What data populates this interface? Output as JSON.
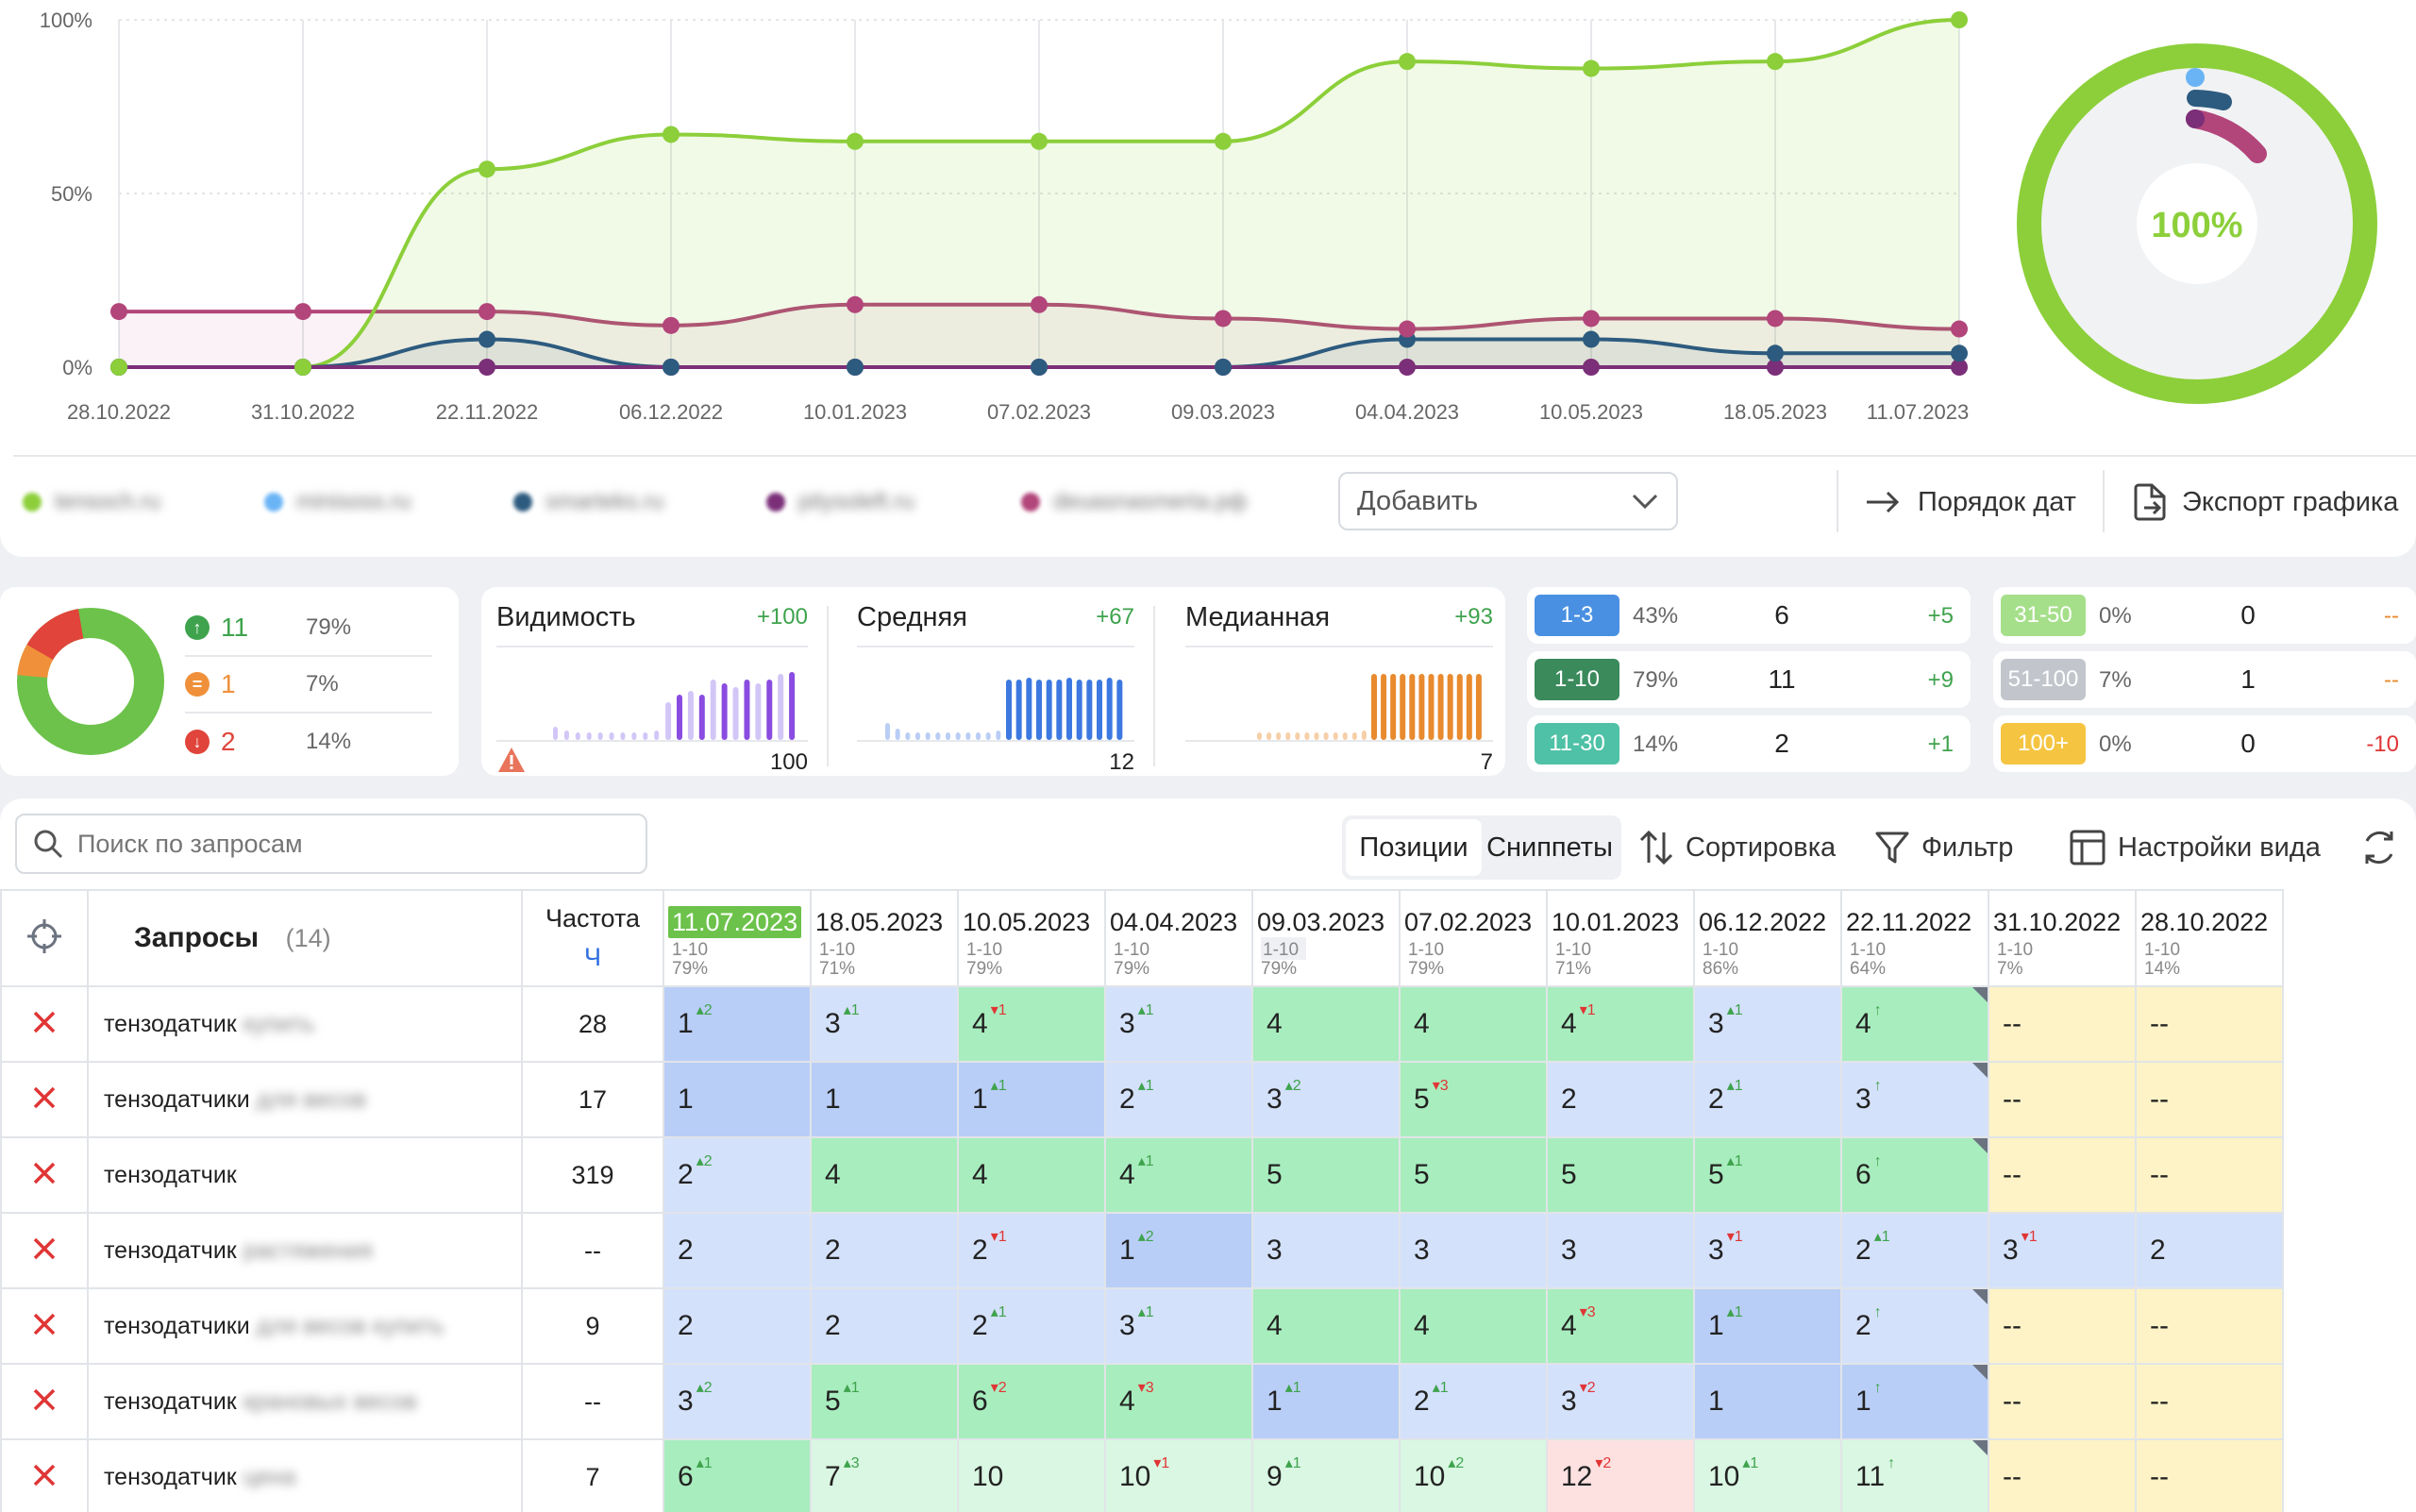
{
  "chart": {
    "y_ticks": [
      "100%",
      "50%",
      "0%"
    ],
    "x_labels": [
      "28.10.2022",
      "31.10.2022",
      "22.11.2022",
      "06.12.2022",
      "10.01.2023",
      "07.02.2023",
      "09.03.2023",
      "04.04.2023",
      "10.05.2023",
      "18.05.2023",
      "11.07.2023"
    ],
    "series_colors": [
      "#8ccf3a",
      "#b2457a",
      "#2d5b7f",
      "#7b2f78",
      "#6ab4f5"
    ],
    "green": [
      0,
      0,
      57,
      67,
      65,
      65,
      65,
      88,
      86,
      88,
      100
    ],
    "pink": [
      16,
      16,
      16,
      12,
      18,
      18,
      14,
      11,
      14,
      14,
      11
    ],
    "navy": [
      0,
      0,
      8,
      0,
      0,
      0,
      0,
      8,
      8,
      4,
      4
    ],
    "purple": [
      0,
      0,
      0,
      0,
      0,
      0,
      0,
      0,
      0,
      0,
      0
    ],
    "donut_label": "100%"
  },
  "legend": [
    {
      "label": "tensoch.ru",
      "color": "#8ccf3a"
    },
    {
      "label": "minisoss.ru",
      "color": "#6ab4f5"
    },
    {
      "label": "smarteks.ru",
      "color": "#2d5b7f"
    },
    {
      "label": "pitysoleft.ru",
      "color": "#7b2f78"
    },
    {
      "label": "deuasnasmerta.pф",
      "color": "#b2457a"
    }
  ],
  "toolbar": {
    "add_label": "Добавить",
    "date_order_label": "Порядок дат",
    "export_label": "Экспорт графика"
  },
  "summary": {
    "up_count": "11",
    "up_pct": "79%",
    "same_count": "1",
    "same_pct": "7%",
    "down_count": "2",
    "down_pct": "14%"
  },
  "metrics": [
    {
      "title": "Видимость",
      "delta": "+100",
      "value": "100"
    },
    {
      "title": "Средняя",
      "delta": "+67",
      "value": "12"
    },
    {
      "title": "Медианная",
      "delta": "+93",
      "value": "7"
    }
  ],
  "ranges": [
    {
      "label": "1-3",
      "pct": "43%",
      "count": "6",
      "delta": "+5",
      "color": "#4a90e2",
      "delta_color": "#3fa34d"
    },
    {
      "label": "1-10",
      "pct": "79%",
      "count": "11",
      "delta": "+9",
      "color": "#3a8a5c",
      "delta_color": "#3fa34d"
    },
    {
      "label": "11-30",
      "pct": "14%",
      "count": "2",
      "delta": "+1",
      "color": "#4fc1a6",
      "delta_color": "#3fa34d"
    },
    {
      "label": "31-50",
      "pct": "0%",
      "count": "0",
      "delta": "--",
      "color": "#a6df8a",
      "delta_color": "#e88a2e"
    },
    {
      "label": "51-100",
      "pct": "7%",
      "count": "1",
      "delta": "--",
      "color": "#c2c6cc",
      "delta_color": "#e88a2e"
    },
    {
      "label": "100+",
      "pct": "0%",
      "count": "0",
      "delta": "-10",
      "color": "#f5c542",
      "delta_color": "#e03535"
    }
  ],
  "search": {
    "placeholder": "Поиск по запросам"
  },
  "view_tabs": {
    "positions": "Позиции",
    "snippets": "Сниппеты"
  },
  "table_tools": {
    "sort": "Сортировка",
    "filter": "Фильтр",
    "view_settings": "Настройки вида"
  },
  "table": {
    "queries_title": "Запросы",
    "queries_count": "(14)",
    "freq_title": "Частота",
    "freq_sub": "Ч",
    "dates": [
      {
        "date": "11.07.2023",
        "range": "1-10",
        "pct": "79%"
      },
      {
        "date": "18.05.2023",
        "range": "1-10",
        "pct": "71%"
      },
      {
        "date": "10.05.2023",
        "range": "1-10",
        "pct": "79%"
      },
      {
        "date": "04.04.2023",
        "range": "1-10",
        "pct": "79%"
      },
      {
        "date": "09.03.2023",
        "range": "1-10",
        "pct": "79%"
      },
      {
        "date": "07.02.2023",
        "range": "1-10",
        "pct": "79%"
      },
      {
        "date": "10.01.2023",
        "range": "1-10",
        "pct": "71%"
      },
      {
        "date": "06.12.2022",
        "range": "1-10",
        "pct": "86%"
      },
      {
        "date": "22.11.2022",
        "range": "1-10",
        "pct": "64%"
      },
      {
        "date": "31.10.2022",
        "range": "1-10",
        "pct": "7%"
      },
      {
        "date": "28.10.2022",
        "range": "1-10",
        "pct": "14%"
      }
    ],
    "rows": [
      {
        "q": "тензодатчик",
        "q_extra": "купить",
        "freq": "28",
        "cells": [
          [
            "1",
            "+2",
            "up",
            "dblue"
          ],
          [
            "3",
            "+1",
            "up",
            "lblue"
          ],
          [
            "4",
            "-1",
            "dn",
            "green"
          ],
          [
            "3",
            "+1",
            "up",
            "lblue"
          ],
          [
            "4",
            "",
            "",
            "green"
          ],
          [
            "4",
            "",
            "",
            "green"
          ],
          [
            "4",
            "-1",
            "dn",
            "green"
          ],
          [
            "3",
            "+1",
            "up",
            "lblue"
          ],
          [
            "4",
            "↑",
            "up",
            "green"
          ],
          [
            "--",
            "",
            "",
            "yellow"
          ],
          [
            "--",
            "",
            "",
            "yellow"
          ]
        ]
      },
      {
        "q": "тензодатчики",
        "q_extra": "для весов",
        "freq": "17",
        "cells": [
          [
            "1",
            "",
            "",
            "dblue"
          ],
          [
            "1",
            "",
            "",
            "dblue"
          ],
          [
            "1",
            "+1",
            "up",
            "dblue"
          ],
          [
            "2",
            "+1",
            "up",
            "lblue"
          ],
          [
            "3",
            "+2",
            "up",
            "lblue"
          ],
          [
            "5",
            "-3",
            "dn",
            "green"
          ],
          [
            "2",
            "",
            "",
            "lblue"
          ],
          [
            "2",
            "+1",
            "up",
            "lblue"
          ],
          [
            "3",
            "↑",
            "up",
            "lblue"
          ],
          [
            "--",
            "",
            "",
            "yellow"
          ],
          [
            "--",
            "",
            "",
            "yellow"
          ]
        ]
      },
      {
        "q": "тензодатчик",
        "q_extra": "",
        "freq": "319",
        "cells": [
          [
            "2",
            "+2",
            "up",
            "lblue"
          ],
          [
            "4",
            "",
            "",
            "green"
          ],
          [
            "4",
            "",
            "",
            "green"
          ],
          [
            "4",
            "+1",
            "up",
            "green"
          ],
          [
            "5",
            "",
            "",
            "green"
          ],
          [
            "5",
            "",
            "",
            "green"
          ],
          [
            "5",
            "",
            "",
            "green"
          ],
          [
            "5",
            "+1",
            "up",
            "green"
          ],
          [
            "6",
            "↑",
            "up",
            "green"
          ],
          [
            "--",
            "",
            "",
            "yellow"
          ],
          [
            "--",
            "",
            "",
            "yellow"
          ]
        ]
      },
      {
        "q": "тензодатчик",
        "q_extra": "растяжения",
        "freq": "--",
        "cells": [
          [
            "2",
            "",
            "",
            "lblue"
          ],
          [
            "2",
            "",
            "",
            "lblue"
          ],
          [
            "2",
            "-1",
            "dn",
            "lblue"
          ],
          [
            "1",
            "+2",
            "up",
            "dblue"
          ],
          [
            "3",
            "",
            "",
            "lblue"
          ],
          [
            "3",
            "",
            "",
            "lblue"
          ],
          [
            "3",
            "",
            "",
            "lblue"
          ],
          [
            "3",
            "-1",
            "dn",
            "lblue"
          ],
          [
            "2",
            "+1",
            "up",
            "lblue"
          ],
          [
            "3",
            "-1",
            "dn",
            "lblue"
          ],
          [
            "2",
            "",
            "",
            "lblue"
          ]
        ]
      },
      {
        "q": "тензодатчики",
        "q_extra": "для весов купить",
        "freq": "9",
        "cells": [
          [
            "2",
            "",
            "",
            "lblue"
          ],
          [
            "2",
            "",
            "",
            "lblue"
          ],
          [
            "2",
            "+1",
            "up",
            "lblue"
          ],
          [
            "3",
            "+1",
            "up",
            "lblue"
          ],
          [
            "4",
            "",
            "",
            "green"
          ],
          [
            "4",
            "",
            "",
            "green"
          ],
          [
            "4",
            "-3",
            "dn",
            "green"
          ],
          [
            "1",
            "+1",
            "up",
            "dblue"
          ],
          [
            "2",
            "↑",
            "up",
            "lblue"
          ],
          [
            "--",
            "",
            "",
            "yellow"
          ],
          [
            "--",
            "",
            "",
            "yellow"
          ]
        ]
      },
      {
        "q": "тензодатчик",
        "q_extra": "крановых весов",
        "freq": "--",
        "cells": [
          [
            "3",
            "+2",
            "up",
            "lblue"
          ],
          [
            "5",
            "+1",
            "up",
            "green"
          ],
          [
            "6",
            "-2",
            "dn",
            "green"
          ],
          [
            "4",
            "-3",
            "dn",
            "green"
          ],
          [
            "1",
            "+1",
            "up",
            "dblue"
          ],
          [
            "2",
            "+1",
            "up",
            "lblue"
          ],
          [
            "3",
            "-2",
            "dn",
            "lblue"
          ],
          [
            "1",
            "",
            "",
            "dblue"
          ],
          [
            "1",
            "↑",
            "up",
            "dblue"
          ],
          [
            "--",
            "",
            "",
            "yellow"
          ],
          [
            "--",
            "",
            "",
            "yellow"
          ]
        ]
      },
      {
        "q": "тензодатчик",
        "q_extra": "цена",
        "freq": "7",
        "cells": [
          [
            "6",
            "+1",
            "up",
            "green"
          ],
          [
            "7",
            "+3",
            "up",
            "lgreen"
          ],
          [
            "10",
            "",
            "",
            "lgreen"
          ],
          [
            "10",
            "-1",
            "dn",
            "lgreen"
          ],
          [
            "9",
            "+1",
            "up",
            "lgreen"
          ],
          [
            "10",
            "+2",
            "up",
            "lgreen"
          ],
          [
            "12",
            "-2",
            "dn",
            "pink"
          ],
          [
            "10",
            "+1",
            "up",
            "lgreen"
          ],
          [
            "11",
            "↑",
            "up",
            "lgreen"
          ],
          [
            "--",
            "",
            "",
            "yellow"
          ],
          [
            "--",
            "",
            "",
            "yellow"
          ]
        ]
      }
    ]
  }
}
